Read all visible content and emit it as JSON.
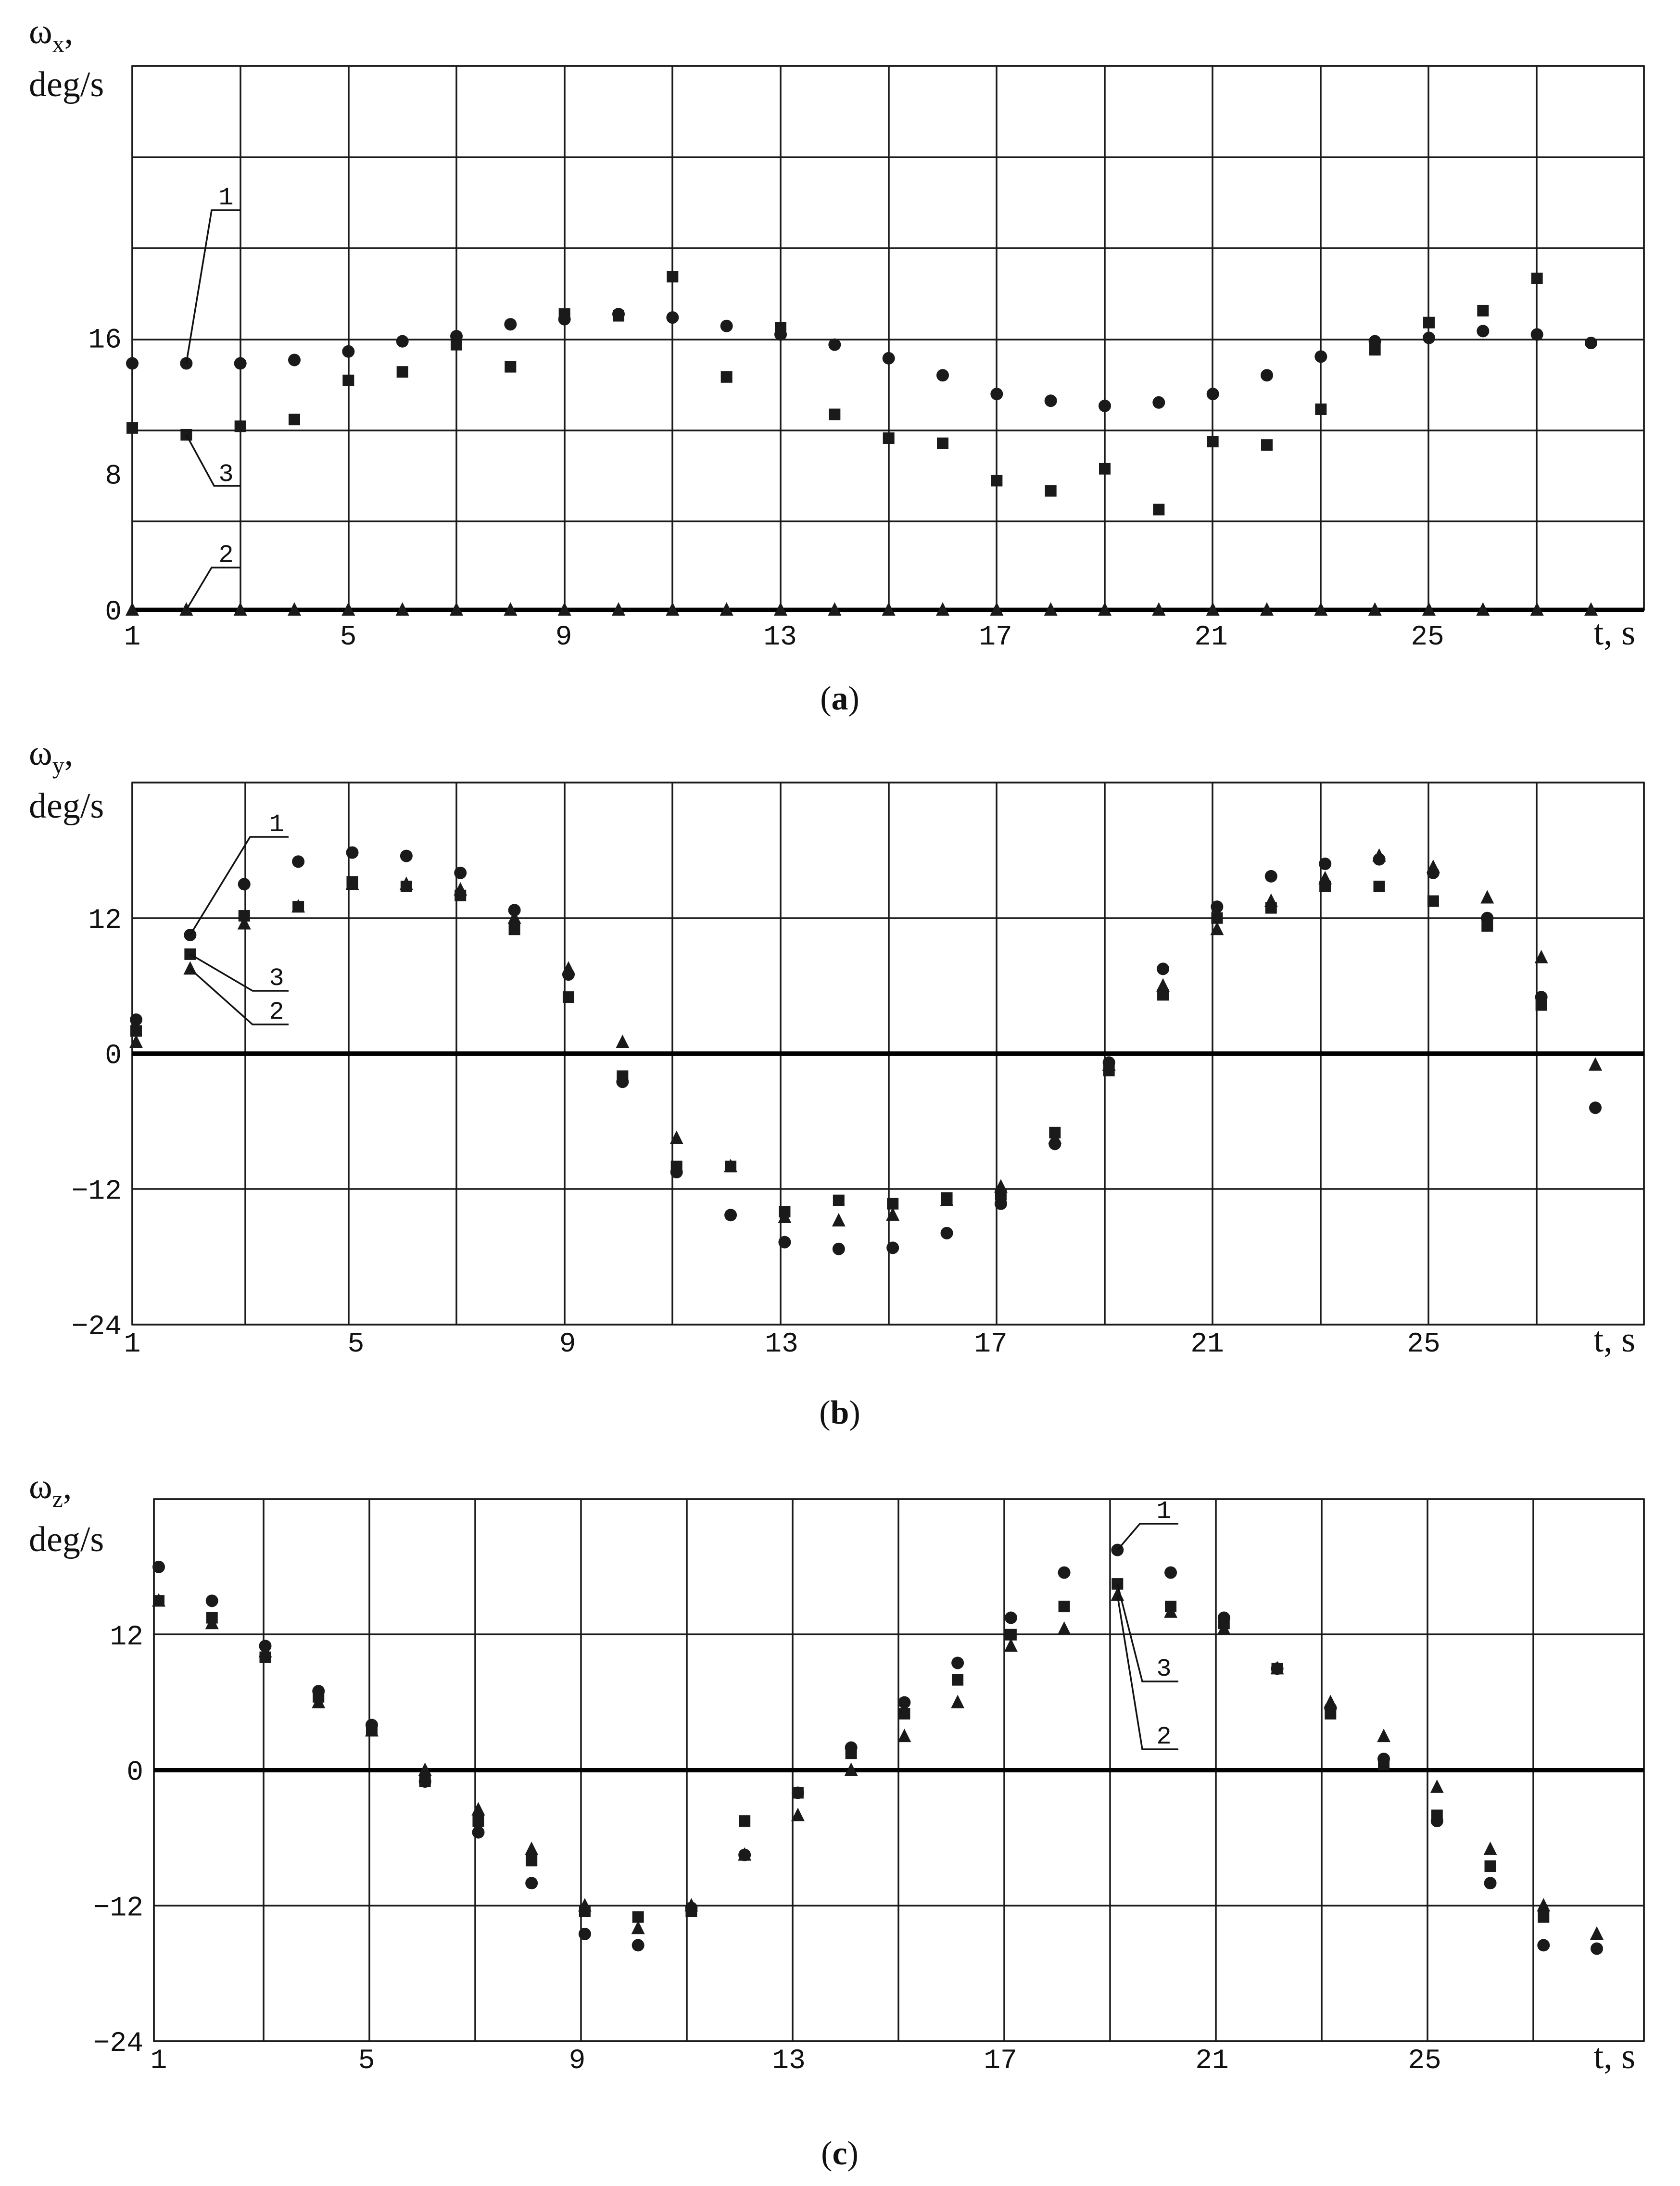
{
  "chart_data": [
    {
      "type": "scatter",
      "panel_caption": {
        "open": "(",
        "letter": "a",
        "close": ")"
      },
      "ylabel_symbol": "ω",
      "ylabel_subscript": "x",
      "ylabel_comma": ",",
      "ylabel_unit": "deg/s",
      "xlabel": "t,  s",
      "xlim": [
        1,
        28
      ],
      "ylim": [
        0,
        32
      ],
      "x_ticks": [
        1,
        5,
        9,
        13,
        17,
        21,
        25
      ],
      "y_ticks": [
        0,
        8,
        16
      ],
      "grid": true,
      "series": [
        {
          "name": "1",
          "marker": "circle",
          "x": [
            1,
            2,
            3,
            4,
            5,
            6,
            7,
            8,
            9,
            10,
            11,
            12,
            13,
            14,
            15,
            16,
            17,
            18,
            19,
            20,
            21,
            22,
            23,
            24,
            25,
            26,
            27,
            28
          ],
          "y": [
            14.5,
            14.5,
            14.5,
            14.7,
            15.2,
            15.8,
            16.1,
            16.8,
            17.1,
            17.4,
            17.2,
            16.7,
            16.2,
            15.6,
            14.8,
            13.8,
            12.7,
            12.3,
            12.0,
            12.2,
            12.7,
            13.8,
            14.9,
            15.8,
            16.0,
            16.4,
            16.2,
            15.7
          ]
        },
        {
          "name": "2",
          "marker": "triangle",
          "x": [
            1,
            2,
            3,
            4,
            5,
            6,
            7,
            8,
            9,
            10,
            11,
            12,
            13,
            14,
            15,
            16,
            17,
            18,
            19,
            20,
            21,
            22,
            23,
            24,
            25,
            26,
            27,
            28
          ],
          "y": [
            0,
            0,
            0,
            0,
            0,
            0,
            0,
            0,
            0,
            0,
            0,
            0,
            0,
            0,
            0,
            0,
            0,
            0,
            0,
            0,
            0,
            0,
            0,
            0,
            0,
            0,
            0,
            0
          ]
        },
        {
          "name": "3",
          "marker": "square",
          "x": [
            1,
            2,
            3,
            4,
            5,
            6,
            7,
            8,
            9,
            10,
            11,
            12,
            13,
            14,
            15,
            16,
            17,
            18,
            19,
            20,
            21,
            22,
            23,
            24,
            25,
            26,
            27
          ],
          "y": [
            10.7,
            10.3,
            10.8,
            11.2,
            13.5,
            14.0,
            15.6,
            14.3,
            17.4,
            17.3,
            19.6,
            13.7,
            16.6,
            11.5,
            10.1,
            9.8,
            7.6,
            7.0,
            8.3,
            5.9,
            9.9,
            9.7,
            11.8,
            15.3,
            16.9,
            17.6,
            19.5
          ]
        }
      ],
      "callouts": [
        "1",
        "3",
        "2"
      ]
    },
    {
      "type": "scatter",
      "panel_caption": {
        "open": "(",
        "letter": "b",
        "close": ")"
      },
      "ylabel_symbol": "ω",
      "ylabel_subscript": "y",
      "ylabel_comma": ",",
      "ylabel_unit": "deg/s",
      "xlabel": "t,  s",
      "xlim": [
        1,
        28
      ],
      "ylim": [
        -24,
        24
      ],
      "x_ticks": [
        1,
        5,
        9,
        13,
        17,
        21,
        25
      ],
      "y_ticks": [
        -24,
        -12,
        0,
        12
      ],
      "grid": true,
      "series": [
        {
          "name": "1",
          "marker": "circle",
          "x": [
            1,
            2,
            3,
            4,
            5,
            6,
            7,
            8,
            9,
            10,
            11,
            12,
            13,
            14,
            15,
            16,
            17,
            18,
            19,
            20,
            21,
            22,
            23,
            24,
            25,
            26,
            27,
            28
          ],
          "y": [
            3.0,
            10.5,
            15.0,
            17.0,
            17.8,
            17.5,
            16.0,
            12.7,
            7.0,
            -2.5,
            -10.5,
            -14.3,
            -16.7,
            -17.3,
            -17.2,
            -15.9,
            -13.3,
            -8.0,
            -0.8,
            7.5,
            13.0,
            15.7,
            16.8,
            17.2,
            16.0,
            12.0,
            5.0,
            -4.8
          ]
        },
        {
          "name": "2",
          "marker": "triangle",
          "x": [
            1,
            2,
            3,
            4,
            5,
            6,
            7,
            8,
            9,
            10,
            11,
            12,
            13,
            14,
            15,
            16,
            17,
            18,
            19,
            20,
            21,
            22,
            23,
            24,
            25,
            26,
            27,
            28
          ],
          "y": [
            1.0,
            7.5,
            11.5,
            13.0,
            15.0,
            15.0,
            14.5,
            12.0,
            7.5,
            1.0,
            -7.5,
            -10.0,
            -14.5,
            -14.8,
            -14.3,
            -13.0,
            -11.8,
            -7.5,
            -1.0,
            6.0,
            11.0,
            13.5,
            15.5,
            17.5,
            16.5,
            13.8,
            8.5,
            -1.0
          ]
        },
        {
          "name": "3",
          "marker": "square",
          "x": [
            1,
            2,
            3,
            4,
            5,
            6,
            7,
            8,
            9,
            10,
            11,
            12,
            13,
            14,
            15,
            16,
            17,
            18,
            19,
            20,
            21,
            22,
            23,
            24,
            25,
            26,
            27
          ],
          "y": [
            2.0,
            8.8,
            12.2,
            13.0,
            15.2,
            14.8,
            14.0,
            11.0,
            5.0,
            -2.0,
            -10.0,
            -10.0,
            -14.0,
            -13.0,
            -13.3,
            -12.8,
            -12.5,
            -7.0,
            -1.5,
            5.2,
            12.0,
            12.9,
            14.8,
            14.8,
            13.5,
            11.3,
            4.3
          ]
        }
      ],
      "callouts": [
        "1",
        "3",
        "2"
      ]
    },
    {
      "type": "scatter",
      "panel_caption": {
        "open": "(",
        "letter": "c",
        "close": ")"
      },
      "ylabel_symbol": "ω",
      "ylabel_subscript": "z",
      "ylabel_comma": ",",
      "ylabel_unit": "deg/s",
      "xlabel": "t,  s",
      "xlim": [
        1,
        28
      ],
      "ylim": [
        -24,
        24
      ],
      "x_ticks": [
        1,
        5,
        9,
        13,
        17,
        21,
        25
      ],
      "y_ticks": [
        -24,
        -12,
        0,
        12
      ],
      "grid": true,
      "series": [
        {
          "name": "1",
          "marker": "circle",
          "x": [
            1,
            2,
            3,
            4,
            5,
            6,
            7,
            8,
            9,
            10,
            11,
            12,
            13,
            14,
            15,
            16,
            17,
            18,
            19,
            20,
            21,
            22,
            23,
            24,
            25,
            26,
            27,
            28
          ],
          "y": [
            18.0,
            15.0,
            11.0,
            7.0,
            4.0,
            -1.0,
            -5.5,
            -10.0,
            -14.5,
            -15.5,
            -12.2,
            -7.5,
            -2.0,
            2.0,
            6.0,
            9.5,
            13.5,
            17.5,
            19.5,
            17.5,
            13.5,
            9.0,
            5.5,
            1.0,
            -4.5,
            -10.0,
            -15.5,
            -15.8
          ]
        },
        {
          "name": "2",
          "marker": "triangle",
          "x": [
            1,
            2,
            3,
            4,
            5,
            6,
            7,
            8,
            9,
            10,
            11,
            12,
            13,
            14,
            15,
            16,
            17,
            18,
            19,
            20,
            21,
            22,
            23,
            24,
            25,
            26,
            27,
            28
          ],
          "y": [
            15.0,
            13.0,
            10.5,
            6.0,
            3.5,
            0.0,
            -3.5,
            -7.0,
            -12.0,
            -14.0,
            -12.0,
            -7.5,
            -4.0,
            0.0,
            3.0,
            6.0,
            11.0,
            12.5,
            15.5,
            14.0,
            12.5,
            9.0,
            6.0,
            3.0,
            -1.5,
            -7.0,
            -12.0,
            -14.5
          ]
        },
        {
          "name": "3",
          "marker": "square",
          "x": [
            1,
            2,
            3,
            4,
            5,
            6,
            7,
            8,
            9,
            10,
            11,
            12,
            13,
            14,
            15,
            16,
            17,
            18,
            19,
            20,
            21,
            22,
            23,
            24,
            25,
            26,
            27
          ],
          "y": [
            15.0,
            13.5,
            10.0,
            6.5,
            3.5,
            -1.0,
            -4.5,
            -8.0,
            -12.5,
            -13.0,
            -12.5,
            -4.5,
            -2.0,
            1.5,
            5.0,
            8.0,
            12.0,
            14.5,
            16.5,
            14.5,
            13.0,
            9.0,
            5.0,
            0.5,
            -4.0,
            -8.5,
            -13.0
          ]
        }
      ],
      "callouts": [
        "1",
        "3",
        "2"
      ]
    }
  ]
}
